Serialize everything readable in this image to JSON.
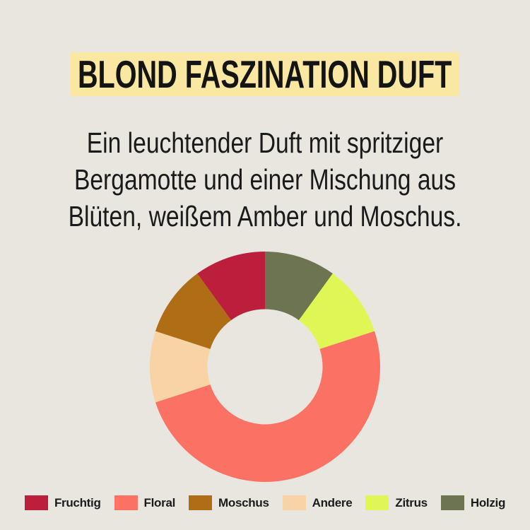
{
  "header": {
    "title": "BLOND FASZINATION DUFT"
  },
  "description": {
    "lines": [
      "Ein leuchtender Duft mit spritziger",
      "Bergamotte und einer Mischung aus",
      "Blüten, weißem Amber und Moschus."
    ]
  },
  "chart_data": {
    "type": "pie",
    "subtype": "donut",
    "title": "",
    "categories": [
      "Fruchtig",
      "Floral",
      "Moschus",
      "Andere",
      "Zitrus",
      "Holzig"
    ],
    "values": [
      10,
      50,
      10,
      10,
      10,
      10
    ],
    "unit": "percent (estimated from segment angles)",
    "colors": [
      "#BC1F3C",
      "#FB7265",
      "#AF6D15",
      "#F8D3A6",
      "#DFF655",
      "#6C7452"
    ],
    "segments_clockwise_from_top": [
      "Holzig",
      "Zitrus",
      "Floral",
      "Andere",
      "Moschus",
      "Fruchtig"
    ],
    "inner_radius_ratio": 0.5,
    "data_labels": false,
    "legend_position": "bottom"
  },
  "theme": {
    "page_background": "#E9E6E0",
    "banner_background": "#F9E7A2",
    "title_color": "#141414",
    "text_color": "#1A1A1A"
  }
}
